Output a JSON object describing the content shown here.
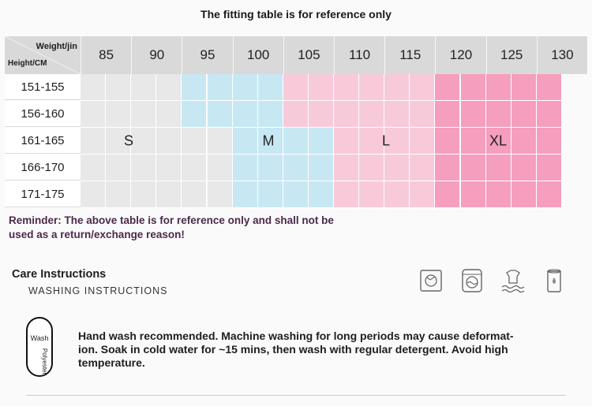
{
  "title": "The fitting table is for reference only",
  "table": {
    "weight_header": "Weight/jin",
    "height_header": "Height/CM",
    "weights": [
      "85",
      "90",
      "95",
      "100",
      "105",
      "110",
      "115",
      "120",
      "125",
      "130"
    ],
    "heights": [
      "151-155",
      "156-160",
      "161-165",
      "166-170",
      "171-175"
    ],
    "sizes": [
      "S",
      "M",
      "L",
      "XL"
    ],
    "colors": {
      "grey": "#e9e8e9",
      "blue": "#c7e8f3",
      "pink": "#f8cad9",
      "rose": "#f59ebd",
      "header": "#d9d9d9"
    }
  },
  "reminder": "Reminder: The above table is for reference only and shall not be used as a return/exchange reason!",
  "care": {
    "title": "Care Instructions",
    "subtitle": "WASHING INSTRUCTIONS",
    "icons": [
      "tumble-dry-icon",
      "washing-machine-icon",
      "hand-wash-icon",
      "bleach-icon"
    ],
    "tag_wash": "Wash",
    "tag_material": "Polyester",
    "text": "Hand wash recommended. Machine washing for long periods may cause deformat-ion. Soak in cold water for ~15 mins, then wash with regular detergent. Avoid high temperature."
  }
}
